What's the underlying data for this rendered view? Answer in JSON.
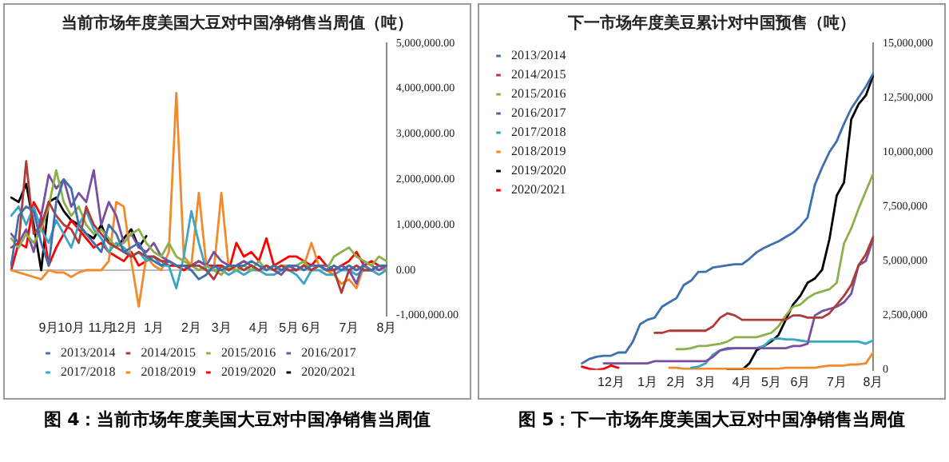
{
  "chart_data": [
    {
      "type": "line",
      "title": "当前市场年度美国大豆对中国净销售当周值（吨）",
      "categories": [
        null,
        null,
        null,
        null,
        null,
        "9月",
        null,
        null,
        "10月",
        null,
        null,
        null,
        "11月",
        null,
        null,
        "12月",
        null,
        null,
        null,
        "1月",
        null,
        null,
        null,
        null,
        "2月",
        null,
        null,
        null,
        "3月",
        null,
        null,
        null,
        null,
        "4月",
        null,
        null,
        null,
        "5月",
        null,
        null,
        "6月",
        null,
        null,
        null,
        null,
        "7月",
        null,
        null,
        null,
        null,
        "8月"
      ],
      "series": [
        {
          "name": "2013/2014",
          "color": "#3e6fb0",
          "values": [
            100000,
            1200000,
            1400000,
            1300000,
            600000,
            100000,
            1500000,
            2000000,
            1800000,
            1000000,
            800000,
            600000,
            400000,
            1000000,
            800000,
            400000,
            500000,
            600000,
            300000,
            200000,
            100000,
            200000,
            100000,
            100000,
            0,
            -200000,
            -100000,
            100000,
            0,
            100000,
            100000,
            100000,
            200000,
            100000,
            0,
            100000,
            0,
            100000,
            100000,
            0,
            100000,
            100000,
            0,
            100000,
            0,
            100000,
            0,
            100000,
            0,
            100000,
            100000
          ]
        },
        {
          "name": "2014/2015",
          "color": "#b03a36",
          "values": [
            500000,
            600000,
            2400000,
            800000,
            1000000,
            1500000,
            1200000,
            1000000,
            900000,
            600000,
            1400000,
            1000000,
            800000,
            600000,
            500000,
            400000,
            300000,
            400000,
            300000,
            300000,
            200000,
            200000,
            100000,
            100000,
            100000,
            100000,
            0,
            -200000,
            100000,
            0,
            100000,
            0,
            100000,
            0,
            100000,
            0,
            100000,
            0,
            0,
            100000,
            0,
            100000,
            0,
            0,
            -500000,
            0,
            100000,
            0,
            0,
            100000,
            100000
          ]
        },
        {
          "name": "2015/2016",
          "color": "#8cb04a",
          "values": [
            700000,
            500000,
            800000,
            600000,
            900000,
            1400000,
            2200000,
            1500000,
            1200000,
            1400000,
            1000000,
            800000,
            900000,
            700000,
            500000,
            600000,
            800000,
            900000,
            600000,
            400000,
            300000,
            600000,
            300000,
            200000,
            100000,
            0,
            100000,
            0,
            -100000,
            100000,
            0,
            100000,
            0,
            200000,
            0,
            100000,
            0,
            100000,
            100000,
            200000,
            0,
            100000,
            0,
            300000,
            400000,
            500000,
            300000,
            200000,
            100000,
            300000,
            200000
          ]
        },
        {
          "name": "2016/2017",
          "color": "#7a4ea0",
          "values": [
            800000,
            600000,
            900000,
            400000,
            1200000,
            2100000,
            1800000,
            2000000,
            1400000,
            1700000,
            1500000,
            2200000,
            1000000,
            1500000,
            1200000,
            600000,
            800000,
            500000,
            400000,
            600000,
            300000,
            200000,
            100000,
            100000,
            100000,
            200000,
            100000,
            400000,
            200000,
            100000,
            100000,
            200000,
            100000,
            0,
            100000,
            0,
            -100000,
            100000,
            0,
            100000,
            0,
            100000,
            100000,
            0,
            100000,
            0,
            -300000,
            200000,
            100000,
            0,
            100000
          ]
        },
        {
          "name": "2017/2018",
          "color": "#3aa6c6",
          "values": [
            1200000,
            1400000,
            1000000,
            1400000,
            900000,
            600000,
            1100000,
            800000,
            500000,
            1000000,
            1300000,
            900000,
            700000,
            400000,
            600000,
            500000,
            300000,
            400000,
            200000,
            300000,
            100000,
            100000,
            -400000,
            300000,
            1300000,
            600000,
            0,
            0,
            0,
            -100000,
            0,
            -100000,
            0,
            0,
            -100000,
            -100000,
            0,
            0,
            -100000,
            -300000,
            0,
            0,
            -100000,
            -100000,
            0,
            0,
            -100000,
            0,
            0,
            -100000,
            0
          ]
        },
        {
          "name": "2018/2019",
          "color": "#f08a2a",
          "values": [
            0,
            -50000,
            -100000,
            -150000,
            -200000,
            0,
            -50000,
            -50000,
            -150000,
            -50000,
            0,
            0,
            0,
            200000,
            1500000,
            1400000,
            200000,
            -800000,
            300000,
            100000,
            0,
            400000,
            3900000,
            300000,
            100000,
            1700000,
            100000,
            0,
            1700000,
            0,
            100000,
            200000,
            100000,
            0,
            100000,
            0,
            100000,
            100000,
            0,
            100000,
            600000,
            100000,
            0,
            -100000,
            -300000,
            -200000,
            -400000,
            100000,
            0,
            100000,
            0
          ]
        },
        {
          "name": "2019/2020",
          "color": "#ff0000",
          "values": [
            0,
            600000,
            500000,
            1500000,
            1200000,
            100000,
            500000,
            800000,
            1100000,
            900000,
            700000,
            500000,
            600000,
            400000,
            300000,
            200000,
            400000,
            100000,
            200000,
            300000,
            200000,
            100000,
            100000,
            0,
            100000,
            200000,
            100000,
            100000,
            100000,
            0,
            600000,
            300000,
            400000,
            200000,
            700000,
            100000,
            200000,
            300000,
            300000,
            200000,
            100000,
            300000,
            100000,
            0,
            100000,
            200000,
            400000,
            100000,
            200000,
            100000,
            0
          ]
        },
        {
          "name": "2020/2021",
          "color": "#000000",
          "values": [
            1600000,
            1500000,
            1900000,
            1000000,
            0,
            1500000,
            1600000,
            1300000,
            1100000,
            1000000,
            800000,
            700000,
            1000000,
            600000,
            500000,
            700000,
            900000,
            500000,
            750000,
            null,
            null,
            null,
            null,
            null,
            null,
            null,
            null,
            null,
            null,
            null,
            null,
            null,
            null,
            null,
            null,
            null,
            null,
            null,
            null,
            null,
            null,
            null,
            null,
            null,
            null,
            null,
            null,
            null,
            null,
            null,
            null
          ]
        }
      ],
      "ylim": [
        -1000000,
        5000000
      ],
      "yticks": [
        {
          "value": -1000000,
          "label": "-1,000,000.00"
        },
        {
          "value": 0,
          "label": "0.00"
        },
        {
          "value": 1000000,
          "label": "1,000,000.00"
        },
        {
          "value": 2000000,
          "label": "2,000,000.00"
        },
        {
          "value": 3000000,
          "label": "3,000,000.00"
        },
        {
          "value": 4000000,
          "label": "4,000,000.00"
        },
        {
          "value": 5000000,
          "label": "5,000,000.00"
        }
      ],
      "legend": "bottom",
      "annotations": [
        "图 4：当前市场年度美国大豆对中国净销售当周值"
      ]
    },
    {
      "type": "line",
      "title": "下一市场年度美豆累计对中国预售（吨）",
      "categories": [
        null,
        null,
        null,
        null,
        "12月",
        null,
        null,
        null,
        null,
        "1月",
        null,
        null,
        null,
        "2月",
        null,
        null,
        null,
        "3月",
        null,
        null,
        null,
        null,
        "4月",
        null,
        null,
        null,
        "5月",
        null,
        null,
        null,
        "6月",
        null,
        null,
        null,
        null,
        "7月",
        null,
        null,
        null,
        null,
        "8月"
      ],
      "series": [
        {
          "name": "2013/2014",
          "color": "#3e6fb0",
          "values": [
            300000,
            500000,
            600000,
            650000,
            650000,
            800000,
            800000,
            1300000,
            2100000,
            2300000,
            2400000,
            2900000,
            3100000,
            3300000,
            3900000,
            4100000,
            4500000,
            4500000,
            4700000,
            4750000,
            4800000,
            4850000,
            4850000,
            5100000,
            5400000,
            5600000,
            5750000,
            5900000,
            6100000,
            6300000,
            6600000,
            7000000,
            8500000,
            9300000,
            10000000,
            10500000,
            11300000,
            12000000,
            12500000,
            13000000,
            13600000
          ]
        },
        {
          "name": "2014/2015",
          "color": "#b03a36",
          "values": [
            null,
            null,
            null,
            null,
            null,
            null,
            null,
            null,
            null,
            null,
            1700000,
            1700000,
            1800000,
            1800000,
            1800000,
            1800000,
            1800000,
            1800000,
            2000000,
            2400000,
            2600000,
            2500000,
            2300000,
            2300000,
            2300000,
            2300000,
            2300000,
            2300000,
            2300000,
            2500000,
            2500000,
            2400000,
            2400000,
            2400000,
            2600000,
            3000000,
            3400000,
            3900000,
            4800000,
            5300000,
            6100000
          ]
        },
        {
          "name": "2015/2016",
          "color": "#8cb04a",
          "values": [
            null,
            null,
            null,
            null,
            null,
            null,
            null,
            null,
            null,
            null,
            null,
            null,
            null,
            950000,
            950000,
            1000000,
            1100000,
            1100000,
            1150000,
            1200000,
            1300000,
            1500000,
            1500000,
            1500000,
            1500000,
            1600000,
            1700000,
            2000000,
            2500000,
            2900000,
            3000000,
            3300000,
            3500000,
            3600000,
            3700000,
            4000000,
            5800000,
            6500000,
            7400000,
            8200000,
            9000000
          ]
        },
        {
          "name": "2016/2017",
          "color": "#7a4ea0",
          "values": [
            null,
            null,
            null,
            300000,
            300000,
            300000,
            300000,
            300000,
            300000,
            300000,
            400000,
            400000,
            400000,
            400000,
            400000,
            400000,
            400000,
            400000,
            600000,
            900000,
            1000000,
            1000000,
            1000000,
            1000000,
            1000000,
            1000000,
            1000000,
            1000000,
            1000000,
            1100000,
            1100000,
            1200000,
            2500000,
            2700000,
            2800000,
            2900000,
            3100000,
            3500000,
            4800000,
            5000000,
            6000000
          ]
        },
        {
          "name": "2017/2018",
          "color": "#3aa6c6",
          "values": [
            null,
            null,
            null,
            null,
            null,
            null,
            null,
            null,
            null,
            null,
            null,
            null,
            null,
            null,
            null,
            100000,
            150000,
            300000,
            700000,
            900000,
            950000,
            1000000,
            1000000,
            1000000,
            1000000,
            1100000,
            1400000,
            1450000,
            1400000,
            1400000,
            1350000,
            1300000,
            1300000,
            1300000,
            1300000,
            1300000,
            1300000,
            1300000,
            1300000,
            1200000,
            1350000
          ]
        },
        {
          "name": "2018/2019",
          "color": "#f08a2a",
          "values": [
            null,
            null,
            null,
            null,
            null,
            null,
            null,
            null,
            null,
            null,
            null,
            null,
            100000,
            100000,
            50000,
            50000,
            50000,
            50000,
            50000,
            50000,
            50000,
            50000,
            50000,
            50000,
            50000,
            50000,
            50000,
            50000,
            100000,
            100000,
            100000,
            100000,
            100000,
            150000,
            200000,
            200000,
            200000,
            250000,
            250000,
            300000,
            800000
          ]
        },
        {
          "name": "2019/2020",
          "color": "#000000",
          "values": [
            null,
            null,
            null,
            null,
            null,
            null,
            null,
            null,
            null,
            null,
            null,
            null,
            null,
            null,
            null,
            null,
            null,
            null,
            null,
            null,
            0,
            0,
            0,
            300000,
            900000,
            1100000,
            1300000,
            1600000,
            2300000,
            3000000,
            3400000,
            4000000,
            4200000,
            4600000,
            6000000,
            8000000,
            8600000,
            11500000,
            12200000,
            12600000,
            13500000
          ]
        },
        {
          "name": "2020/2021",
          "color": "#ff0000",
          "values": [
            150000,
            50000,
            0,
            50000,
            200000,
            100000,
            null,
            null,
            null,
            null,
            null,
            null,
            null,
            null,
            null,
            null,
            null,
            null,
            null,
            null,
            null,
            null,
            null,
            null,
            null,
            null,
            null,
            null,
            null,
            null,
            null,
            null,
            null,
            null,
            null,
            null,
            null,
            null,
            null,
            null,
            null
          ]
        }
      ],
      "ylim": [
        0,
        15000000
      ],
      "yticks": [
        0,
        {
          "value": 2500000,
          "label": "2,500,000"
        },
        {
          "value": 5000000,
          "label": "5,000,000"
        },
        {
          "value": 7500000,
          "label": "7,500,000"
        },
        {
          "value": 10000000,
          "label": "10,000,000"
        },
        {
          "value": 12500000,
          "label": "12,500,000"
        },
        {
          "value": 15000000,
          "label": "15,000,000"
        }
      ],
      "legend": "top left",
      "annotations": [
        "图 5：下一市场年度美国大豆对中国净销售当周值"
      ]
    }
  ]
}
